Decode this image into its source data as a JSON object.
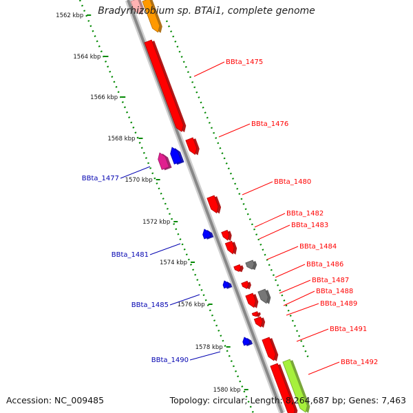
{
  "genome_title": "Bradyrhizobium sp. BTAi1, complete genome",
  "footer": {
    "accession_label": "Accession:",
    "accession": "NC_009485",
    "topology_label": "Topology:",
    "topology": "circular",
    "length_label": "Length:",
    "length": "8,264,687 bp",
    "genes_label": "Genes:",
    "genes": "7,463"
  },
  "ticks": [
    "1562 kbp",
    "1564 kbp",
    "1566 kbp",
    "1568 kbp",
    "1570 kbp",
    "1572 kbp",
    "1574 kbp",
    "1576 kbp",
    "1578 kbp",
    "1580 kbp"
  ],
  "colors": {
    "forward_label": "#ff0000",
    "reverse_label": "#0000b0",
    "gene_red": "#ff0000",
    "gene_blue": "#0000ff",
    "gene_gray": "#777777",
    "gene_magenta": "#e0208f",
    "gene_orange": "#ff9900",
    "gene_lime": "#a6f03c",
    "gene_pink": "#ffb3b3",
    "backbone": "#888888",
    "ruler": "#008800"
  },
  "labels_forward": [
    "BBta_1475",
    "BBta_1476",
    "BBta_1480",
    "BBta_1482",
    "BBta_1483",
    "BBta_1484",
    "BBta_1486",
    "BBta_1487",
    "BBta_1488",
    "BBta_1489",
    "BBta_1491",
    "BBta_1492"
  ],
  "labels_reverse": [
    "BBta_1477",
    "BBta_1481",
    "BBta_1485",
    "BBta_1490"
  ]
}
